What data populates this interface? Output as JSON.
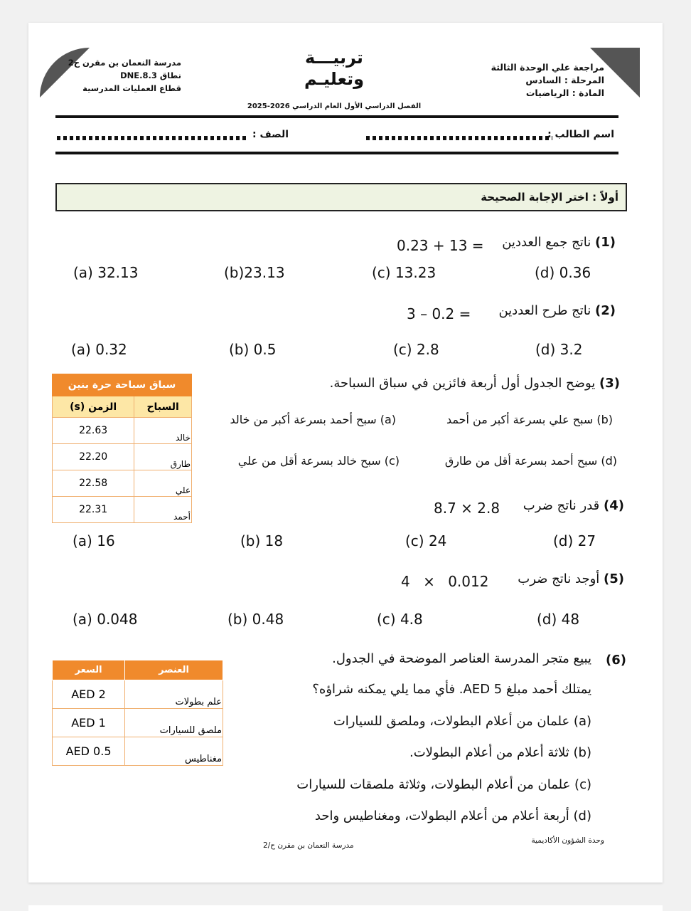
{
  "header": {
    "right": [
      "مراجعة علي الوحدة الثالثة",
      "المرحلة : السادس",
      "المادة : الرياضيات"
    ],
    "left": [
      "مدرسة النعمان بن مقرن ح2",
      "نطاق DNE.8.3",
      "قطاع العمليات المدرسية"
    ],
    "logo": [
      "تربيـــة",
      "وتعليـم"
    ],
    "semester": "الفصل الدراسي الأول العام الدراسي 2026-2025",
    "student_label": "اسم الطالب :",
    "class_label": "الصف :"
  },
  "section_title": "أولاً : اختر الإجابة الصحيحة",
  "questions": [
    {
      "num": "(1)",
      "text": "ناتج جمع العددين",
      "expr": "0.23 + 13 =",
      "options": [
        "(a) 32.13",
        "(b)23.13",
        "(c) 13.23",
        "(d) 0.36"
      ]
    },
    {
      "num": "(2)",
      "text": "ناتج طرح العددين",
      "expr": "3 – 0.2 =",
      "options": [
        "(a) 0.32",
        "(b) 0.5",
        "(c) 2.8",
        "(d) 3.2"
      ]
    },
    {
      "num": "(3)",
      "text": "يوضح الجدول أول أربعة فائزين في سباق السباحة.",
      "options": [
        "(a) سبح أحمد بسرعة أكبر من خالد",
        "(b) سبح علي بسرعة أكبر من أحمد",
        "(c) سبح خالد بسرعة أقل من علي",
        "(d) سبح أحمد بسرعة أقل من طارق"
      ]
    },
    {
      "num": "(4)",
      "text": "قدر ناتج ضرب",
      "expr": "8.7 × 2.8",
      "options": [
        "(a) 16",
        "(b) 18",
        "(c) 24",
        "(d) 27"
      ]
    },
    {
      "num": "(5)",
      "text": "أوجد ناتج ضرب",
      "expr": "4 × 0.012",
      "options": [
        "(a) 0.048",
        "(b) 0.48",
        "(c) 4.8",
        "(d) 48"
      ]
    },
    {
      "num": "(6)",
      "lines": [
        "يبيع متجر المدرسة العناصر الموضحة في الجدول.",
        "يمتلك أحمد مبلغ AED 5. فأي مما يلي يمكنه شراؤه؟"
      ],
      "options": [
        "(a) علمان من أعلام البطولات، وملصق للسيارات",
        "(b) ثلاثة أعلام من أعلام البطولات.",
        "(c) علمان من أعلام البطولات، وثلاثة ملصقات للسيارات",
        "(d) أربعة أعلام من أعلام البطولات، ومغناطيس واحد"
      ]
    }
  ],
  "swim_table": {
    "title": "سباق سباحة حرة بنين",
    "headers": [
      "السباح",
      "الزمن (s)"
    ],
    "rows": [
      [
        "خالد",
        "22.63"
      ],
      [
        "طارق",
        "22.20"
      ],
      [
        "علي",
        "22.58"
      ],
      [
        "أحمد",
        "22.31"
      ]
    ]
  },
  "shop_table": {
    "headers": [
      "العنصر",
      "السعر"
    ],
    "rows": [
      [
        "علم بطولات",
        "AED 2"
      ],
      [
        "ملصق للسيارات",
        "AED 1"
      ],
      [
        "مغناطيس",
        "AED 0.5"
      ]
    ]
  },
  "footer": {
    "right": "وحدة الشؤون الأكاديمية",
    "center": "مدرسة النعمان بن مقرن ح/2"
  },
  "colors": {
    "table_orange": "#f08a2c",
    "table_header_yellow": "#fde7a6",
    "section_bg": "#eef3e2"
  }
}
